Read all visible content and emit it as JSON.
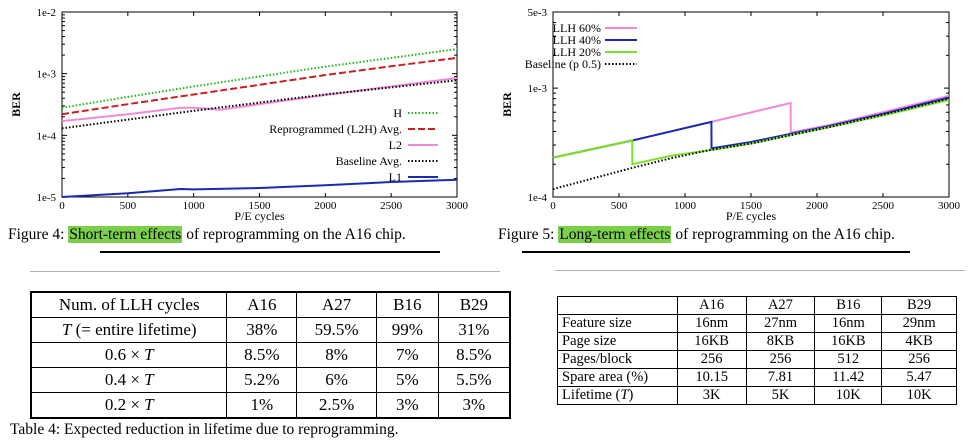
{
  "fig4": {
    "caption_prefix": "Figure 4: ",
    "caption_highlight": "Short-term effects",
    "caption_suffix": " of reprogramming on the A16 chip.",
    "chart_data": {
      "type": "line",
      "title": "",
      "xlabel": "P/E cycles",
      "ylabel": "BER",
      "ylog": true,
      "xlim": [
        0,
        3000
      ],
      "ylim": [
        1e-05,
        0.01
      ],
      "xticks": [
        "0",
        "500",
        "1000",
        "1500",
        "2000",
        "2500",
        "3000"
      ],
      "yticks": [
        "1e-5",
        "1e-4",
        "1e-3",
        "1e-2"
      ],
      "legend_position": "right",
      "series": [
        {
          "name": "H",
          "color": "#18b818",
          "style": "dotted",
          "x": [
            0,
            500,
            1000,
            1500,
            2000,
            2500,
            3000
          ],
          "y": [
            0.00028,
            0.00042,
            0.00062,
            0.0009,
            0.0013,
            0.0018,
            0.0025
          ]
        },
        {
          "name": "Reprogrammed (L2H) Avg.",
          "color": "#c82020",
          "style": "dashed",
          "x": [
            0,
            500,
            1000,
            1500,
            2000,
            2500,
            3000
          ],
          "y": [
            0.00022,
            0.00032,
            0.00046,
            0.00066,
            0.00095,
            0.00132,
            0.0018
          ]
        },
        {
          "name": "L2",
          "color": "#f08ad8",
          "style": "solid",
          "x": [
            0,
            500,
            900,
            1000,
            1200,
            1500,
            2000,
            2500,
            3000
          ],
          "y": [
            0.00017,
            0.00022,
            0.00028,
            0.00028,
            0.00026,
            0.00032,
            0.00045,
            0.00062,
            0.00085
          ]
        },
        {
          "name": "Baseline Avg.",
          "color": "#000000",
          "style": "dotted",
          "x": [
            0,
            500,
            1000,
            1500,
            2000,
            2500,
            3000
          ],
          "y": [
            0.00013,
            0.00018,
            0.00025,
            0.00034,
            0.00046,
            0.0006,
            0.00078
          ]
        },
        {
          "name": "L1",
          "color": "#1a2bb0",
          "style": "solid",
          "x": [
            0,
            500,
            900,
            1000,
            1500,
            2000,
            2500,
            3000
          ],
          "y": [
            1e-05,
            1.15e-05,
            1.35e-05,
            1.33e-05,
            1.4e-05,
            1.55e-05,
            1.75e-05,
            1.9e-05
          ]
        }
      ]
    }
  },
  "fig5": {
    "caption_prefix": "Figure 5: ",
    "caption_highlight": "Long-term effects",
    "caption_suffix": " of reprogramming on the A16 chip.",
    "chart_data": {
      "type": "line",
      "title": "",
      "xlabel": "P/E cycles",
      "ylabel": "BER",
      "ylog": true,
      "xlim": [
        0,
        3000
      ],
      "ylim": [
        0.0001,
        0.005
      ],
      "xticks": [
        "0",
        "500",
        "1000",
        "1500",
        "2000",
        "2500",
        "3000"
      ],
      "yticks": [
        "1e-4",
        "1e-3",
        "5e-3"
      ],
      "legend_position": "top-left",
      "series": [
        {
          "name": "LLH 60%",
          "color": "#f08ad8",
          "style": "solid",
          "x": [
            0,
            600,
            1200,
            1800,
            1801,
            2100,
            2500,
            3000
          ],
          "y": [
            0.00023,
            0.00033,
            0.00049,
            0.00073,
            0.00039,
            0.00046,
            0.0006,
            0.00085
          ]
        },
        {
          "name": "LLH 40%",
          "color": "#1a2bb0",
          "style": "solid",
          "x": [
            0,
            600,
            1200,
            1201,
            1500,
            1800,
            2100,
            2500,
            3000
          ],
          "y": [
            0.00023,
            0.00033,
            0.00049,
            0.00028,
            0.00032,
            0.00038,
            0.00045,
            0.00058,
            0.00082
          ]
        },
        {
          "name": "LLH 20%",
          "color": "#7fe02a",
          "style": "solid",
          "x": [
            0,
            600,
            601,
            900,
            1200,
            1500,
            1800,
            2100,
            2500,
            3000
          ],
          "y": [
            0.00023,
            0.00033,
            0.0002,
            0.00024,
            0.00027,
            0.00031,
            0.00037,
            0.00044,
            0.00056,
            0.00078
          ]
        },
        {
          "name": "Baseline (p 0.5)",
          "color": "#000000",
          "style": "dotted",
          "x": [
            0,
            300,
            600,
            900,
            1200,
            1500,
            1800,
            2100,
            2500,
            3000
          ],
          "y": [
            0.000118,
            0.000148,
            0.000185,
            0.000228,
            0.000272,
            0.00031,
            0.00037,
            0.00044,
            0.00057,
            0.0008
          ]
        }
      ]
    }
  },
  "table4": {
    "caption": "Table 4: Expected reduction in lifetime due to reprogramming.",
    "headers": [
      "Num. of LLH cycles",
      "A16",
      "A27",
      "B16",
      "B29"
    ],
    "rows": [
      [
        "T (= entire lifetime)",
        "38%",
        "59.5%",
        "99%",
        "31%"
      ],
      [
        "0.6 × T",
        "8.5%",
        "8%",
        "7%",
        "8.5%"
      ],
      [
        "0.4 × T",
        "5.2%",
        "6%",
        "5%",
        "5.5%"
      ],
      [
        "0.2 × T",
        "1%",
        "2.5%",
        "3%",
        "3%"
      ]
    ]
  },
  "table5": {
    "headers": [
      "",
      "A16",
      "A27",
      "B16",
      "B29"
    ],
    "rows": [
      [
        "Feature size",
        "16nm",
        "27nm",
        "16nm",
        "29nm"
      ],
      [
        "Page size",
        "16KB",
        "8KB",
        "16KB",
        "4KB"
      ],
      [
        "Pages/block",
        "256",
        "256",
        "512",
        "256"
      ],
      [
        "Spare area (%)",
        "10.15",
        "7.81",
        "11.42",
        "5.47"
      ],
      [
        "Lifetime (T)",
        "3K",
        "5K",
        "10K",
        "10K"
      ]
    ]
  }
}
